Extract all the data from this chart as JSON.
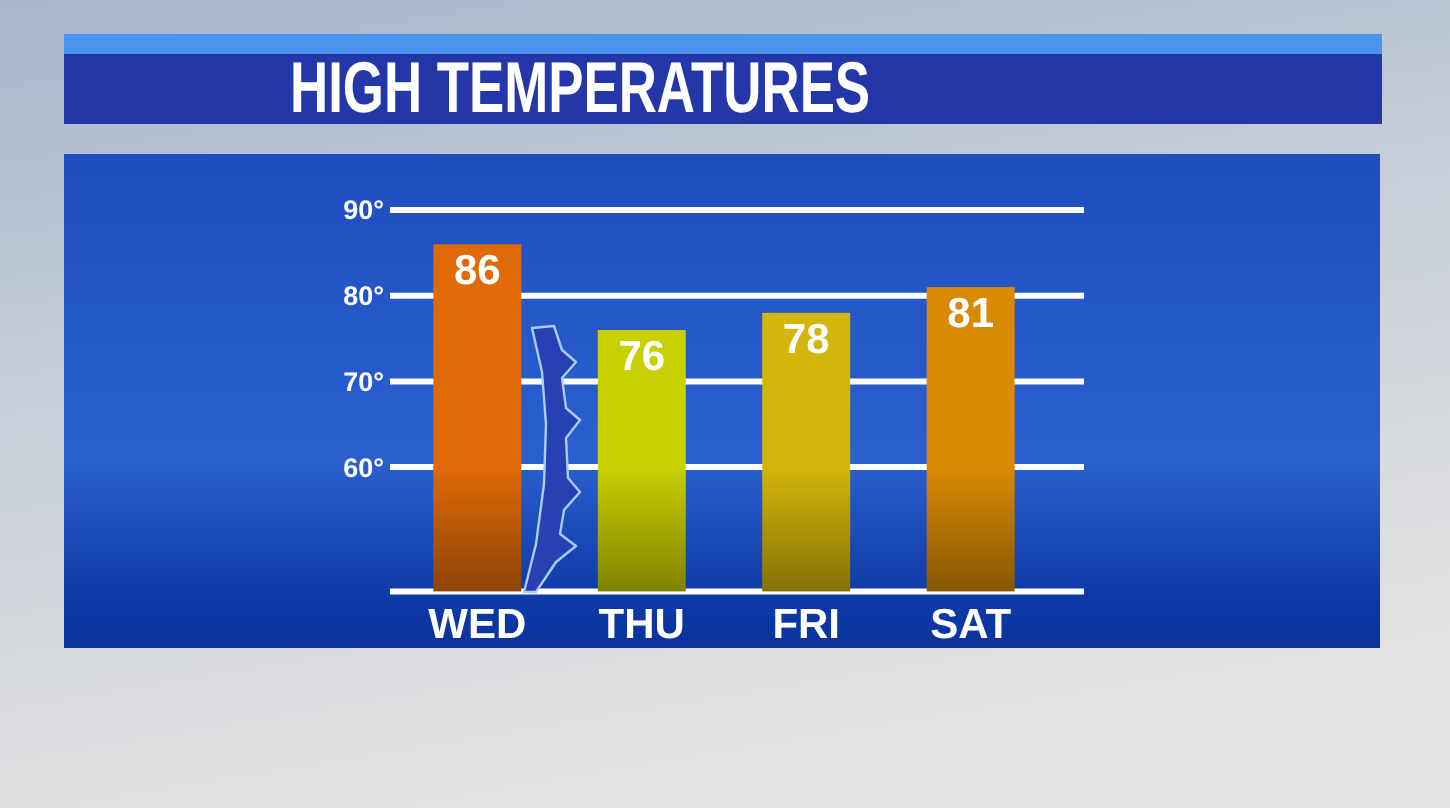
{
  "chart_data": {
    "type": "bar",
    "title": "HIGH TEMPERATURES",
    "categories": [
      "WED",
      "THU",
      "FRI",
      "SAT"
    ],
    "values": [
      86,
      76,
      78,
      81
    ],
    "colors": [
      "#e06a08",
      "#c9d000",
      "#d4b60a",
      "#d98a05"
    ],
    "ylim": [
      45.5,
      90
    ],
    "yticks": [
      {
        "value": 60,
        "label": "60°"
      },
      {
        "value": 70,
        "label": "70°"
      },
      {
        "value": 80,
        "label": "80°"
      },
      {
        "value": 90,
        "label": "90°"
      }
    ],
    "grid": "y",
    "data_labels": true
  }
}
